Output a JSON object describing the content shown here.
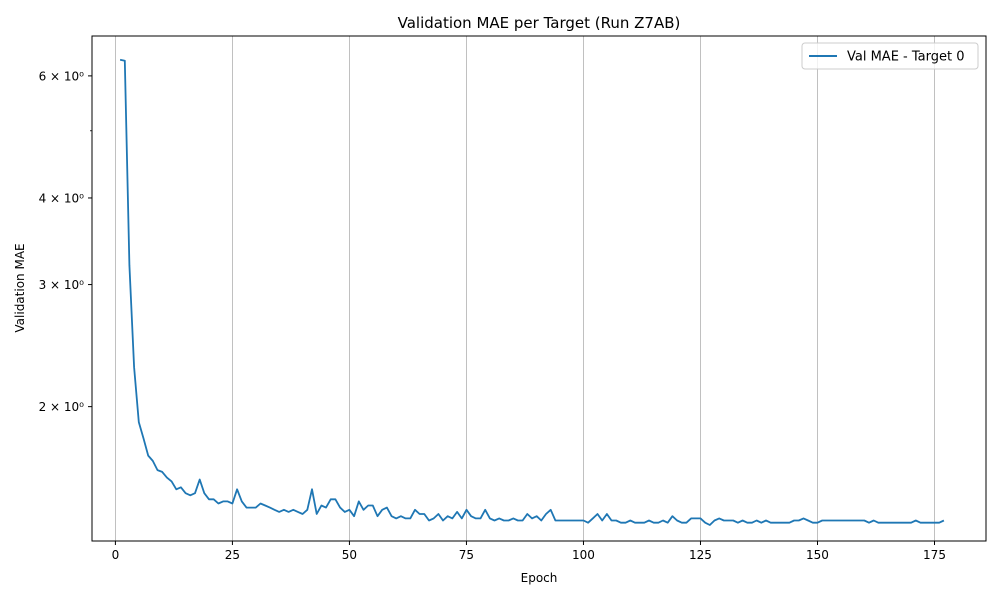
{
  "chart_data": {
    "type": "line",
    "title": "Validation MAE per Target (Run Z7AB)",
    "xlabel": "Epoch",
    "ylabel": "Validation MAE",
    "xlim": [
      -5,
      186
    ],
    "ylim": [
      1.28,
      6.85
    ],
    "yscale": "log",
    "grid": "x-only",
    "legend_position": "top-right",
    "x_ticks": [
      0,
      25,
      50,
      75,
      100,
      125,
      150,
      175
    ],
    "y_ticks": [
      {
        "value": 2,
        "label": "2 × 10⁰"
      },
      {
        "value": 3,
        "label": "3 × 10⁰"
      },
      {
        "value": 4,
        "label": "4 × 10⁰"
      },
      {
        "value": 6,
        "label": "6 × 10⁰"
      }
    ],
    "y_minor_ticks": [
      5
    ],
    "series": [
      {
        "name": "Val MAE - Target 0",
        "color": "#1f77b4",
        "x": [
          1,
          2,
          3,
          4,
          5,
          6,
          7,
          8,
          9,
          10,
          11,
          12,
          13,
          14,
          15,
          16,
          17,
          18,
          19,
          20,
          21,
          22,
          23,
          24,
          25,
          26,
          27,
          28,
          29,
          30,
          31,
          32,
          33,
          34,
          35,
          36,
          37,
          38,
          39,
          40,
          41,
          42,
          43,
          44,
          45,
          46,
          47,
          48,
          49,
          50,
          51,
          52,
          53,
          54,
          55,
          56,
          57,
          58,
          59,
          60,
          61,
          62,
          63,
          64,
          65,
          66,
          67,
          68,
          69,
          70,
          71,
          72,
          73,
          74,
          75,
          76,
          77,
          78,
          79,
          80,
          81,
          82,
          83,
          84,
          85,
          86,
          87,
          88,
          89,
          90,
          91,
          92,
          93,
          94,
          95,
          96,
          97,
          98,
          99,
          100,
          101,
          102,
          103,
          104,
          105,
          106,
          107,
          108,
          109,
          110,
          111,
          112,
          113,
          114,
          115,
          116,
          117,
          118,
          119,
          120,
          121,
          122,
          123,
          124,
          125,
          126,
          127,
          128,
          129,
          130,
          131,
          132,
          133,
          134,
          135,
          136,
          137,
          138,
          139,
          140,
          141,
          142,
          143,
          144,
          145,
          146,
          147,
          148,
          149,
          150,
          151,
          152,
          153,
          154,
          155,
          156,
          157,
          158,
          159,
          160,
          161,
          162,
          163,
          164,
          165,
          166,
          167,
          168,
          169,
          170,
          171,
          172,
          173,
          174,
          175,
          176,
          177
        ],
        "values": [
          6.33,
          6.31,
          3.2,
          2.28,
          1.9,
          1.8,
          1.7,
          1.67,
          1.62,
          1.61,
          1.58,
          1.56,
          1.52,
          1.53,
          1.5,
          1.49,
          1.5,
          1.57,
          1.5,
          1.47,
          1.47,
          1.45,
          1.46,
          1.46,
          1.45,
          1.52,
          1.46,
          1.43,
          1.43,
          1.43,
          1.45,
          1.44,
          1.43,
          1.42,
          1.41,
          1.42,
          1.41,
          1.42,
          1.41,
          1.4,
          1.42,
          1.52,
          1.4,
          1.44,
          1.43,
          1.47,
          1.47,
          1.43,
          1.41,
          1.42,
          1.39,
          1.46,
          1.42,
          1.44,
          1.44,
          1.39,
          1.42,
          1.43,
          1.39,
          1.38,
          1.39,
          1.38,
          1.38,
          1.42,
          1.4,
          1.4,
          1.37,
          1.38,
          1.4,
          1.37,
          1.39,
          1.38,
          1.41,
          1.38,
          1.42,
          1.39,
          1.38,
          1.38,
          1.42,
          1.38,
          1.37,
          1.38,
          1.37,
          1.37,
          1.38,
          1.37,
          1.37,
          1.4,
          1.38,
          1.39,
          1.37,
          1.4,
          1.42,
          1.37,
          1.37,
          1.37,
          1.37,
          1.37,
          1.37,
          1.37,
          1.36,
          1.38,
          1.4,
          1.37,
          1.4,
          1.37,
          1.37,
          1.36,
          1.36,
          1.37,
          1.36,
          1.36,
          1.36,
          1.37,
          1.36,
          1.36,
          1.37,
          1.36,
          1.39,
          1.37,
          1.36,
          1.36,
          1.38,
          1.38,
          1.38,
          1.36,
          1.35,
          1.37,
          1.38,
          1.37,
          1.37,
          1.37,
          1.36,
          1.37,
          1.36,
          1.36,
          1.37,
          1.36,
          1.37,
          1.36,
          1.36,
          1.36,
          1.36,
          1.36,
          1.37,
          1.37,
          1.38,
          1.37,
          1.36,
          1.36,
          1.37,
          1.37,
          1.37,
          1.37,
          1.37,
          1.37,
          1.37,
          1.37,
          1.37,
          1.37,
          1.36,
          1.37,
          1.36,
          1.36,
          1.36,
          1.36,
          1.36,
          1.36,
          1.36,
          1.36,
          1.37,
          1.36,
          1.36,
          1.36,
          1.36,
          1.36,
          1.37
        ]
      }
    ]
  }
}
